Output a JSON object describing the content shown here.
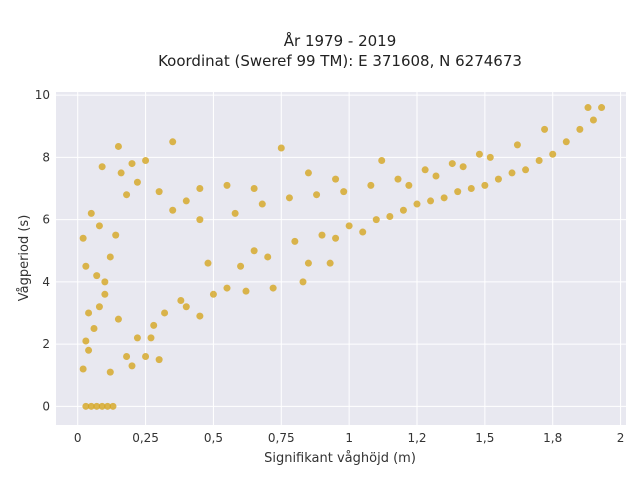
{
  "chart_data": {
    "type": "scatter",
    "title_line1": "År 1979 - 2019",
    "title_line2": "Koordinat (Sweref 99 TM): E 371608, N 6274673",
    "xlabel": "Signifikant våghöjd (m)",
    "ylabel": "Vågperiod (s)",
    "xlim": [
      -0.08,
      2.02
    ],
    "ylim": [
      -0.6,
      10.1
    ],
    "x_ticks": [
      0,
      0.25,
      0.5,
      0.75,
      1,
      1.25,
      1.5,
      1.75,
      2
    ],
    "x_tick_labels": [
      "0",
      "0,25",
      "0,5",
      "0,75",
      "1",
      "1,2",
      "1,5",
      "1,8",
      "2"
    ],
    "y_ticks": [
      0,
      2,
      4,
      6,
      8,
      10
    ],
    "y_tick_labels": [
      "0",
      "2",
      "4",
      "6",
      "8",
      "10"
    ],
    "grid": true,
    "marker_color": "#d4a520",
    "background_color": "#e8e8f0",
    "series": [
      {
        "points": [
          [
            0.03,
            0
          ],
          [
            0.05,
            0
          ],
          [
            0.07,
            0
          ],
          [
            0.09,
            0
          ],
          [
            0.11,
            0
          ],
          [
            0.13,
            0
          ],
          [
            0.02,
            1.2
          ],
          [
            0.04,
            1.8
          ],
          [
            0.06,
            2.5
          ],
          [
            0.08,
            3.2
          ],
          [
            0.1,
            4.0
          ],
          [
            0.12,
            4.8
          ],
          [
            0.14,
            5.5
          ],
          [
            0.05,
            6.2
          ],
          [
            0.08,
            5.8
          ],
          [
            0.03,
            4.5
          ],
          [
            0.02,
            5.4
          ],
          [
            0.09,
            7.7
          ],
          [
            0.16,
            7.5
          ],
          [
            0.2,
            7.8
          ],
          [
            0.18,
            6.8
          ],
          [
            0.22,
            7.2
          ],
          [
            0.25,
            7.9
          ],
          [
            0.35,
            8.5
          ],
          [
            0.15,
            8.35
          ],
          [
            0.12,
            1.1
          ],
          [
            0.2,
            1.3
          ],
          [
            0.25,
            1.6
          ],
          [
            0.3,
            1.5
          ],
          [
            0.22,
            2.2
          ],
          [
            0.28,
            2.6
          ],
          [
            0.32,
            3.0
          ],
          [
            0.4,
            3.2
          ],
          [
            0.5,
            3.6
          ],
          [
            0.55,
            3.8
          ],
          [
            0.48,
            4.6
          ],
          [
            0.6,
            4.5
          ],
          [
            0.65,
            5.0
          ],
          [
            0.7,
            4.8
          ],
          [
            0.72,
            3.8
          ],
          [
            0.8,
            5.3
          ],
          [
            0.85,
            4.6
          ],
          [
            0.9,
            5.5
          ],
          [
            0.95,
            5.4
          ],
          [
            1.0,
            5.8
          ],
          [
            1.05,
            5.6
          ],
          [
            1.1,
            6.0
          ],
          [
            1.15,
            6.1
          ],
          [
            1.2,
            6.3
          ],
          [
            1.25,
            6.5
          ],
          [
            1.3,
            6.6
          ],
          [
            1.35,
            6.7
          ],
          [
            1.4,
            6.9
          ],
          [
            1.45,
            7.0
          ],
          [
            1.5,
            7.1
          ],
          [
            1.55,
            7.3
          ],
          [
            1.6,
            7.5
          ],
          [
            1.65,
            7.6
          ],
          [
            1.7,
            7.9
          ],
          [
            1.75,
            8.1
          ],
          [
            1.8,
            8.5
          ],
          [
            1.85,
            8.9
          ],
          [
            1.9,
            9.2
          ],
          [
            1.93,
            9.6
          ],
          [
            1.88,
            9.6
          ],
          [
            1.72,
            8.9
          ],
          [
            1.62,
            8.4
          ],
          [
            1.52,
            8.0
          ],
          [
            1.42,
            7.7
          ],
          [
            1.32,
            7.4
          ],
          [
            1.22,
            7.1
          ],
          [
            1.12,
            7.9
          ],
          [
            0.95,
            7.3
          ],
          [
            0.75,
            8.3
          ],
          [
            0.85,
            7.5
          ],
          [
            0.65,
            7.0
          ],
          [
            0.55,
            7.1
          ],
          [
            0.45,
            7.0
          ],
          [
            0.4,
            6.6
          ],
          [
            0.3,
            6.9
          ],
          [
            0.35,
            6.3
          ],
          [
            0.45,
            6.0
          ],
          [
            0.58,
            6.2
          ],
          [
            0.68,
            6.5
          ],
          [
            0.78,
            6.7
          ],
          [
            0.88,
            6.8
          ],
          [
            0.98,
            6.9
          ],
          [
            1.08,
            7.1
          ],
          [
            1.18,
            7.3
          ],
          [
            1.28,
            7.6
          ],
          [
            1.38,
            7.8
          ],
          [
            1.48,
            8.1
          ],
          [
            0.62,
            3.7
          ],
          [
            0.83,
            4.0
          ],
          [
            0.93,
            4.6
          ],
          [
            0.45,
            2.9
          ],
          [
            0.38,
            3.4
          ],
          [
            0.27,
            2.2
          ],
          [
            0.18,
            1.6
          ],
          [
            0.15,
            2.8
          ],
          [
            0.1,
            3.6
          ],
          [
            0.07,
            4.2
          ],
          [
            0.04,
            3.0
          ],
          [
            0.03,
            2.1
          ]
        ]
      }
    ]
  }
}
